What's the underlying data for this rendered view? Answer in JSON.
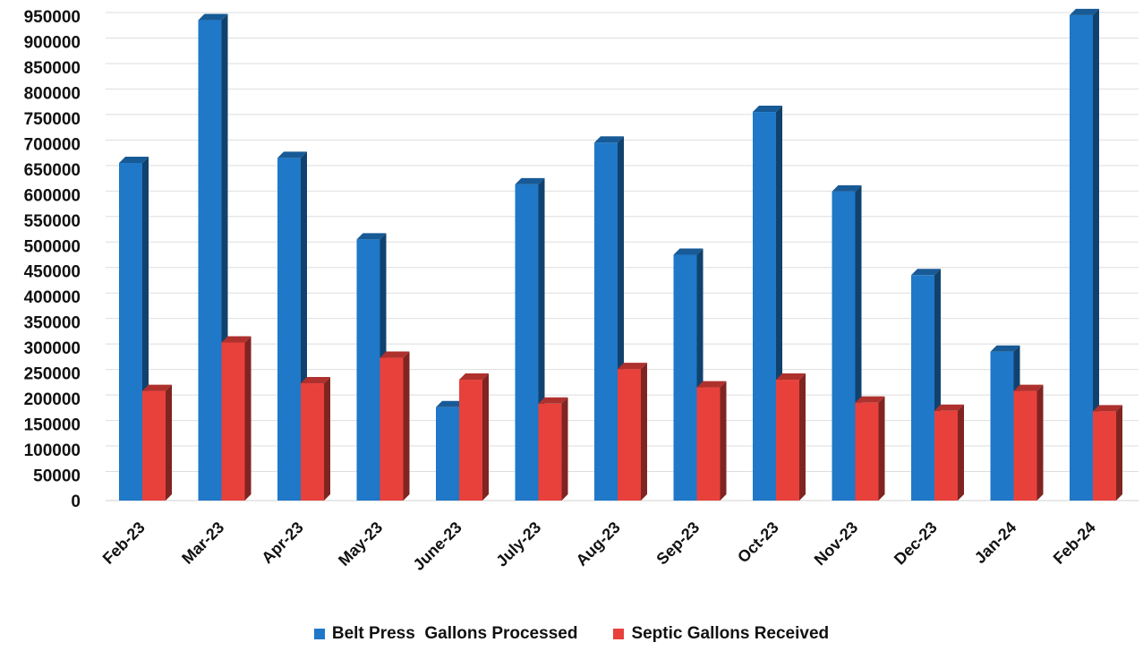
{
  "chart_data": {
    "type": "bar",
    "categories": [
      "Feb-23",
      "Mar-23",
      "Apr-23",
      "May-23",
      "June-23",
      "July-23",
      "Aug-23",
      "Sep-23",
      "Oct-23",
      "Nov-23",
      "Dec-23",
      "Jan-24",
      "Feb-24"
    ],
    "series": [
      {
        "name": "Belt Press  Gallons Processed",
        "color": "#1f78c8",
        "values": [
          662000,
          942000,
          672000,
          512000,
          183000,
          620000,
          702000,
          482000,
          762000,
          606000,
          442000,
          292000,
          952000
        ]
      },
      {
        "name": "Septic Gallons Received",
        "color": "#e8413c",
        "values": [
          215000,
          310000,
          230000,
          280000,
          237000,
          190000,
          258000,
          222000,
          237000,
          192000,
          176000,
          215000,
          175000
        ]
      }
    ],
    "ylim": [
      0,
      950000
    ],
    "yticks": [
      "950000",
      "900000",
      "850000",
      "800000",
      "750000",
      "700000",
      "650000",
      "600000",
      "550000",
      "500000",
      "450000",
      "400000",
      "350000",
      "300000",
      "250000",
      "200000",
      "150000",
      "100000",
      "50000",
      "0"
    ],
    "grid": true,
    "legend_position": "bottom",
    "style": "3d-column"
  }
}
